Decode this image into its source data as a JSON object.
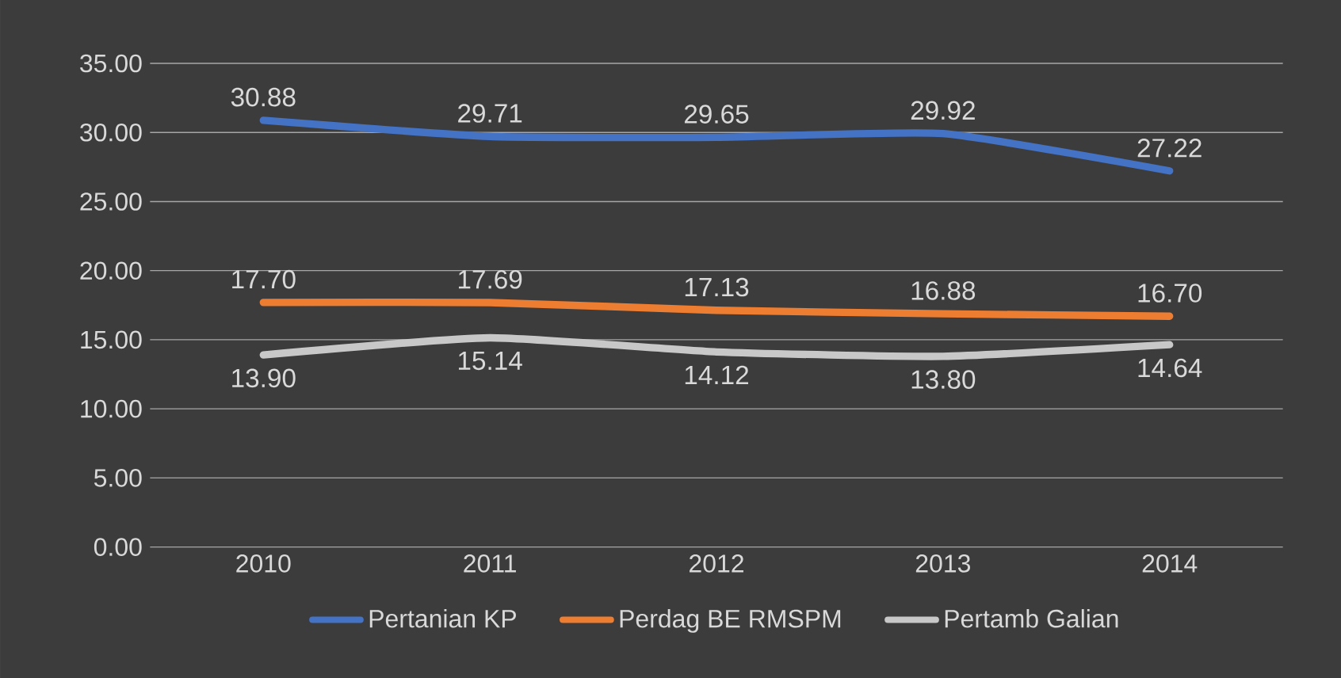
{
  "chart_data": {
    "type": "line",
    "categories": [
      "2010",
      "2011",
      "2012",
      "2013",
      "2014"
    ],
    "series": [
      {
        "name": "Pertanian KP",
        "color": "#4472c4",
        "values": [
          30.88,
          29.71,
          29.65,
          29.92,
          27.22
        ],
        "value_labels": [
          "30.88",
          "29.71",
          "29.65",
          "29.92",
          "27.22"
        ]
      },
      {
        "name": "Perdag BE RMSPM",
        "color": "#ed7d31",
        "values": [
          17.7,
          17.69,
          17.13,
          16.88,
          16.7
        ],
        "value_labels": [
          "17.70",
          "17.69",
          "17.13",
          "16.88",
          "16.70"
        ]
      },
      {
        "name": "Pertamb Galian",
        "color": "#c8c8c8",
        "values": [
          13.9,
          15.14,
          14.12,
          13.8,
          14.64
        ],
        "value_labels": [
          "13.90",
          "15.14",
          "14.12",
          "13.80",
          "14.64"
        ]
      }
    ],
    "ylim": [
      0,
      35
    ],
    "yticks": [
      {
        "value": 0,
        "label": "0.00"
      },
      {
        "value": 5,
        "label": "5.00"
      },
      {
        "value": 10,
        "label": "10.00"
      },
      {
        "value": 15,
        "label": "15.00"
      },
      {
        "value": 20,
        "label": "20.00"
      },
      {
        "value": 25,
        "label": "25.00"
      },
      {
        "value": 30,
        "label": "30.00"
      },
      {
        "value": 35,
        "label": "35.00"
      }
    ],
    "grid": "y",
    "legend": "bottom",
    "marker": "none",
    "line_style": "solid"
  }
}
